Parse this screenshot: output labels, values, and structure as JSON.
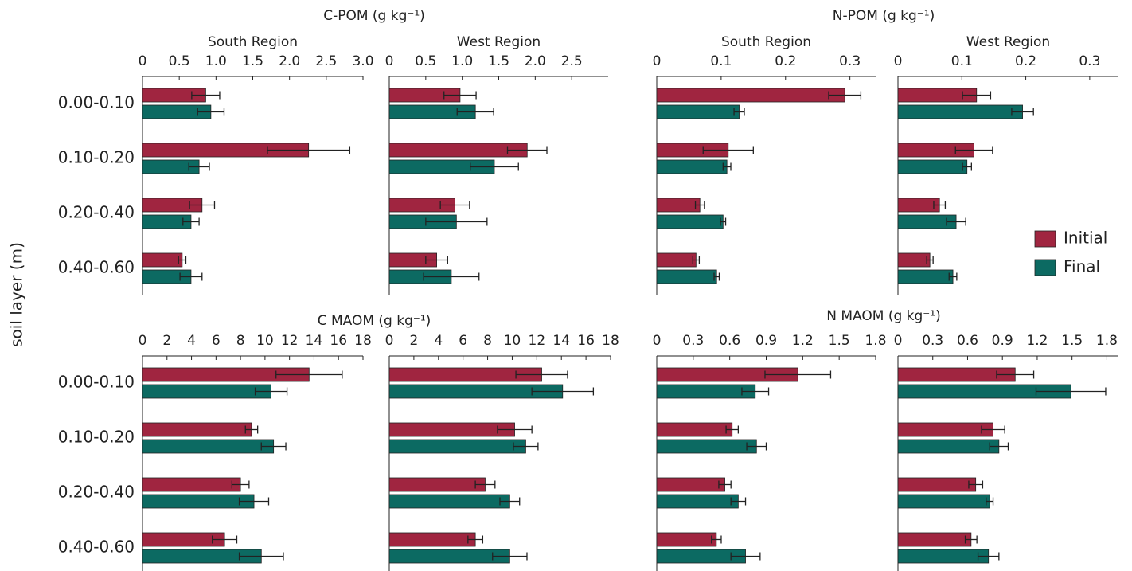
{
  "chart_data": [
    {
      "type": "bar",
      "title": "C-POM (g kg⁻¹)",
      "subtitle": "South Region",
      "y_label": "soil layer (m)",
      "legend": "right",
      "categories": [
        "0.00-0.10",
        "0.10-0.20",
        "0.20-0.40",
        "0.40-0.60"
      ],
      "xlim": [
        0,
        3.0
      ],
      "xticks": [
        0,
        0.5,
        {
          "value": 1,
          "label": "1.0"
        },
        1.5,
        {
          "value": 2,
          "label": "2.0"
        },
        2.5,
        {
          "value": 3,
          "label": "3.0"
        }
      ],
      "series": [
        {
          "name": "Initial",
          "color": "#a02540",
          "values": [
            0.86,
            2.26,
            0.81,
            0.54
          ],
          "errors": [
            0.19,
            0.56,
            0.17,
            0.05
          ]
        },
        {
          "name": "Final",
          "color": "#0c6a62",
          "values": [
            0.93,
            0.77,
            0.66,
            0.66
          ],
          "errors": [
            0.18,
            0.14,
            0.11,
            0.15
          ]
        }
      ]
    },
    {
      "type": "bar",
      "subtitle": "West Region",
      "xlim": [
        0,
        3.0
      ],
      "xticks": [
        0,
        0.5,
        {
          "value": 1,
          "label": "1.0"
        },
        1.5,
        {
          "value": 2,
          "label": "2.0"
        },
        2.5
      ],
      "series": [
        {
          "color": "#a02540",
          "values": [
            0.97,
            1.89,
            0.9,
            0.65
          ],
          "errors": [
            0.22,
            0.27,
            0.2,
            0.15
          ]
        },
        {
          "color": "#0c6a62",
          "values": [
            1.18,
            1.44,
            0.92,
            0.85
          ],
          "errors": [
            0.25,
            0.33,
            0.42,
            0.38
          ]
        }
      ]
    },
    {
      "type": "bar",
      "title": "N-POM (g kg⁻¹)",
      "subtitle": "South Region",
      "xlim": [
        0,
        0.34
      ],
      "xticks": [
        0,
        0.1,
        0.2,
        0.3
      ],
      "series": [
        {
          "color": "#a02540",
          "values": [
            0.292,
            0.111,
            0.067,
            0.061
          ],
          "errors": [
            0.025,
            0.039,
            0.007,
            0.005
          ]
        },
        {
          "color": "#0c6a62",
          "values": [
            0.128,
            0.109,
            0.103,
            0.093
          ],
          "errors": [
            0.008,
            0.006,
            0.004,
            0.004
          ]
        }
      ]
    },
    {
      "type": "bar",
      "subtitle": "West Region",
      "xlim": [
        0,
        0.345
      ],
      "xticks": [
        0,
        0.1,
        0.2,
        0.3
      ],
      "series": [
        {
          "color": "#a02540",
          "values": [
            0.123,
            0.119,
            0.065,
            0.05
          ],
          "errors": [
            0.022,
            0.029,
            0.009,
            0.005
          ]
        },
        {
          "color": "#0c6a62",
          "values": [
            0.195,
            0.108,
            0.091,
            0.086
          ],
          "errors": [
            0.017,
            0.007,
            0.015,
            0.006
          ]
        }
      ]
    },
    {
      "type": "bar",
      "title": "C MAOM (g kg⁻¹)",
      "categories": [
        "0.00-0.10",
        "0.10-0.20",
        "0.20-0.40",
        "0.40-0.60"
      ],
      "xlim": [
        0,
        18
      ],
      "xticks": [
        0,
        2,
        4,
        6,
        8,
        10,
        12,
        14,
        16,
        18
      ],
      "series": [
        {
          "color": "#a02540",
          "values": [
            13.6,
            8.9,
            8.0,
            6.7
          ],
          "errors": [
            2.7,
            0.5,
            0.7,
            1.0
          ]
        },
        {
          "color": "#0c6a62",
          "values": [
            10.5,
            10.7,
            9.1,
            9.7
          ],
          "errors": [
            1.3,
            1.0,
            1.2,
            1.8
          ]
        }
      ]
    },
    {
      "type": "bar",
      "xlim": [
        0,
        18
      ],
      "xticks": [
        0,
        2,
        4,
        6,
        8,
        10,
        12,
        14,
        16,
        18
      ],
      "series": [
        {
          "color": "#a02540",
          "values": [
            12.4,
            10.2,
            7.8,
            7.0
          ],
          "errors": [
            2.1,
            1.4,
            0.8,
            0.6
          ]
        },
        {
          "color": "#0c6a62",
          "values": [
            14.1,
            11.1,
            9.8,
            9.8
          ],
          "errors": [
            2.5,
            1.0,
            0.8,
            1.4
          ]
        }
      ]
    },
    {
      "type": "bar",
      "title": "N MAOM (g kg⁻¹)",
      "xlim": [
        0,
        1.8
      ],
      "xticks": [
        0,
        0.3,
        0.6,
        0.9,
        1.2,
        1.5,
        1.8
      ],
      "series": [
        {
          "color": "#a02540",
          "values": [
            1.16,
            0.62,
            0.56,
            0.49
          ],
          "errors": [
            0.27,
            0.05,
            0.05,
            0.04
          ]
        },
        {
          "color": "#0c6a62",
          "values": [
            0.81,
            0.82,
            0.67,
            0.73
          ],
          "errors": [
            0.11,
            0.08,
            0.06,
            0.12
          ]
        }
      ]
    },
    {
      "type": "bar",
      "xlim": [
        0,
        1.9
      ],
      "xticks": [
        0,
        0.3,
        0.6,
        0.9,
        1.2,
        1.5,
        1.8
      ],
      "series": [
        {
          "color": "#a02540",
          "values": [
            1.01,
            0.82,
            0.67,
            0.63
          ],
          "errors": [
            0.16,
            0.1,
            0.06,
            0.05
          ]
        },
        {
          "color": "#0c6a62",
          "values": [
            1.49,
            0.87,
            0.79,
            0.78
          ],
          "errors": [
            0.3,
            0.08,
            0.03,
            0.09
          ]
        }
      ]
    }
  ]
}
